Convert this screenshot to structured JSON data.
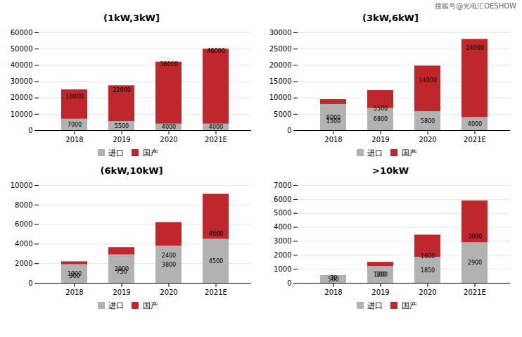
{
  "chart_data": [
    {
      "type": "bar",
      "title": "(1kW,3kW]",
      "stacked": true,
      "data_labels": true,
      "grid": true,
      "legend": "bottom",
      "categories": [
        "2018",
        "2019",
        "2020",
        "2021E"
      ],
      "series": [
        {
          "name": "进口",
          "color": "#b2b2b2",
          "values": [
            7000,
            5500,
            4000,
            4000
          ]
        },
        {
          "name": "国产",
          "color": "#c0272d",
          "values": [
            18000,
            22000,
            38000,
            46000
          ]
        }
      ],
      "ylim": [
        0,
        60000
      ],
      "yticks": [
        0,
        10000,
        20000,
        30000,
        40000,
        50000,
        60000
      ]
    },
    {
      "type": "bar",
      "title": "(3kW,6kW]",
      "stacked": true,
      "data_labels": true,
      "grid": true,
      "legend": "bottom",
      "annotations": [
        "搜狐号@光电汇OESHOW"
      ],
      "categories": [
        "2018",
        "2019",
        "2020",
        "2021E"
      ],
      "series": [
        {
          "name": "进口",
          "color": "#b2b2b2",
          "values": [
            8000,
            6800,
            5800,
            4000
          ]
        },
        {
          "name": "国产",
          "color": "#c0272d",
          "values": [
            1500,
            5500,
            14000,
            24000
          ]
        }
      ],
      "ylim": [
        0,
        30000
      ],
      "yticks": [
        0,
        5000,
        10000,
        15000,
        20000,
        25000,
        30000
      ]
    },
    {
      "type": "bar",
      "title": "(6kW,10kW]",
      "stacked": true,
      "data_labels": true,
      "grid": true,
      "legend": "bottom",
      "categories": [
        "2018",
        "2019",
        "2020",
        "2021E"
      ],
      "series": [
        {
          "name": "进口",
          "color": "#b2b2b2",
          "values": [
            1900,
            2900,
            3800,
            4500
          ]
        },
        {
          "name": "国产",
          "color": "#c0272d",
          "values": [
            300,
            750,
            2400,
            4600
          ]
        }
      ],
      "ylim": [
        0,
        10000
      ],
      "yticks": [
        0,
        2000,
        4000,
        6000,
        8000,
        10000
      ]
    },
    {
      "type": "bar",
      "title": ">10kW",
      "stacked": true,
      "data_labels": true,
      "grid": true,
      "legend": "bottom",
      "categories": [
        "2018",
        "2019",
        "2020",
        "2021E"
      ],
      "series": [
        {
          "name": "进口",
          "color": "#b2b2b2",
          "values": [
            500,
            1200,
            1850,
            2900
          ]
        },
        {
          "name": "国产",
          "color": "#c0272d",
          "values": [
            30,
            300,
            1600,
            3000
          ]
        }
      ],
      "ylim": [
        0,
        7000
      ],
      "yticks": [
        0,
        1000,
        2000,
        3000,
        4000,
        5000,
        6000,
        7000
      ]
    }
  ]
}
